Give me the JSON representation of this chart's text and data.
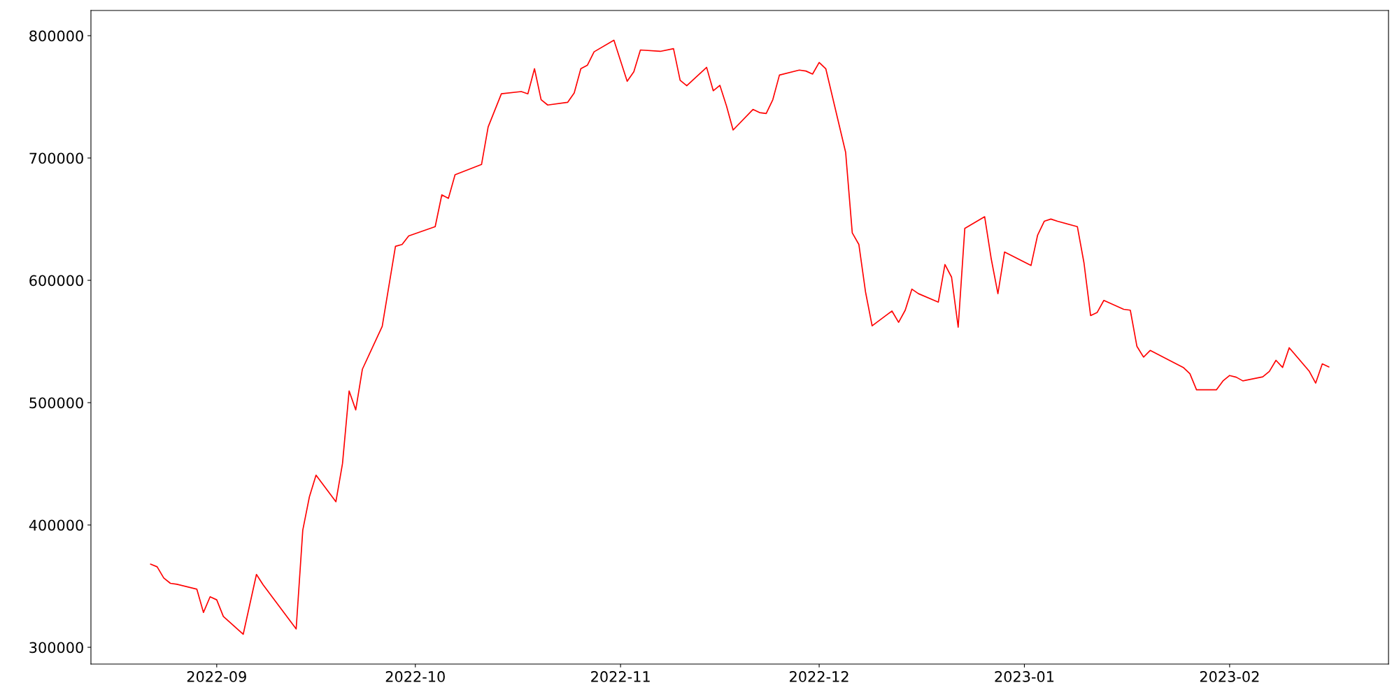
{
  "chart_data": {
    "type": "line",
    "x": [
      "2022-08-22",
      "2022-08-23",
      "2022-08-24",
      "2022-08-25",
      "2022-08-26",
      "2022-08-29",
      "2022-08-30",
      "2022-08-31",
      "2022-09-01",
      "2022-09-02",
      "2022-09-05",
      "2022-09-07",
      "2022-09-08",
      "2022-09-13",
      "2022-09-14",
      "2022-09-15",
      "2022-09-16",
      "2022-09-19",
      "2022-09-20",
      "2022-09-21",
      "2022-09-22",
      "2022-09-23",
      "2022-09-26",
      "2022-09-28",
      "2022-09-29",
      "2022-09-30",
      "2022-10-04",
      "2022-10-05",
      "2022-10-06",
      "2022-10-07",
      "2022-10-11",
      "2022-10-12",
      "2022-10-14",
      "2022-10-17",
      "2022-10-18",
      "2022-10-19",
      "2022-10-20",
      "2022-10-21",
      "2022-10-24",
      "2022-10-25",
      "2022-10-26",
      "2022-10-27",
      "2022-10-28",
      "2022-10-31",
      "2022-11-01",
      "2022-11-02",
      "2022-11-03",
      "2022-11-04",
      "2022-11-07",
      "2022-11-09",
      "2022-11-10",
      "2022-11-11",
      "2022-11-14",
      "2022-11-15",
      "2022-11-16",
      "2022-11-17",
      "2022-11-18",
      "2022-11-21",
      "2022-11-22",
      "2022-11-23",
      "2022-11-24",
      "2022-11-25",
      "2022-11-28",
      "2022-11-29",
      "2022-11-30",
      "2022-12-01",
      "2022-12-02",
      "2022-12-05",
      "2022-12-06",
      "2022-12-07",
      "2022-12-08",
      "2022-12-09",
      "2022-12-12",
      "2022-12-13",
      "2022-12-14",
      "2022-12-15",
      "2022-12-16",
      "2022-12-19",
      "2022-12-20",
      "2022-12-21",
      "2022-12-22",
      "2022-12-23",
      "2022-12-26",
      "2022-12-27",
      "2022-12-28",
      "2022-12-29",
      "2023-01-02",
      "2023-01-03",
      "2023-01-04",
      "2023-01-05",
      "2023-01-06",
      "2023-01-09",
      "2023-01-10",
      "2023-01-11",
      "2023-01-12",
      "2023-01-13",
      "2023-01-16",
      "2023-01-17",
      "2023-01-18",
      "2023-01-19",
      "2023-01-20",
      "2023-01-25",
      "2023-01-26",
      "2023-01-27",
      "2023-01-30",
      "2023-01-31",
      "2023-02-01",
      "2023-02-02",
      "2023-02-03",
      "2023-02-06",
      "2023-02-07",
      "2023-02-08",
      "2023-02-09",
      "2023-02-10",
      "2023-02-13",
      "2023-02-14",
      "2023-02-15",
      "2023-02-16"
    ],
    "series": [
      {
        "color": "#ff0000",
        "values": [
          368000,
          365800,
          356700,
          352300,
          351500,
          347500,
          328500,
          341300,
          338800,
          325200,
          310600,
          359600,
          351200,
          315000,
          395800,
          423000,
          440700,
          419000,
          450200,
          509600,
          494100,
          527300,
          562400,
          627800,
          629300,
          636300,
          643900,
          669900,
          667000,
          686300,
          694700,
          725400,
          752500,
          754300,
          752500,
          773000,
          747700,
          743300,
          745500,
          753200,
          773000,
          775900,
          786800,
          796300,
          779500,
          762700,
          770400,
          788300,
          787200,
          789400,
          763500,
          759100,
          774100,
          755000,
          759400,
          742600,
          722900,
          739700,
          737100,
          736400,
          747700,
          767800,
          771900,
          771100,
          768600,
          778100,
          773000,
          704600,
          638800,
          629300,
          590600,
          562800,
          574900,
          565700,
          575600,
          592800,
          589100,
          582200,
          612900,
          602600,
          561700,
          642500,
          652000,
          617300,
          589100,
          623100,
          612100,
          637000,
          648300,
          650100,
          648300,
          643900,
          614300,
          571200,
          573800,
          583600,
          576300,
          575600,
          546000,
          537200,
          542700,
          528800,
          523700,
          510500,
          510500,
          517800,
          522200,
          520800,
          517800,
          521100,
          525500,
          534600,
          528800,
          544900,
          525900,
          516000,
          531700,
          529200
        ]
      }
    ],
    "xlim": [
      "2022-08-13",
      "2023-02-25"
    ],
    "ylim": [
      286300,
      820600
    ],
    "xticks": [
      {
        "value": "2022-09-01",
        "label": "2022-09"
      },
      {
        "value": "2022-10-01",
        "label": "2022-10"
      },
      {
        "value": "2022-11-01",
        "label": "2022-11"
      },
      {
        "value": "2022-12-01",
        "label": "2022-12"
      },
      {
        "value": "2023-01-01",
        "label": "2023-01"
      },
      {
        "value": "2023-02-01",
        "label": "2023-02"
      }
    ],
    "yticks": [
      300000,
      400000,
      500000,
      600000,
      700000,
      800000
    ],
    "grid": false
  }
}
